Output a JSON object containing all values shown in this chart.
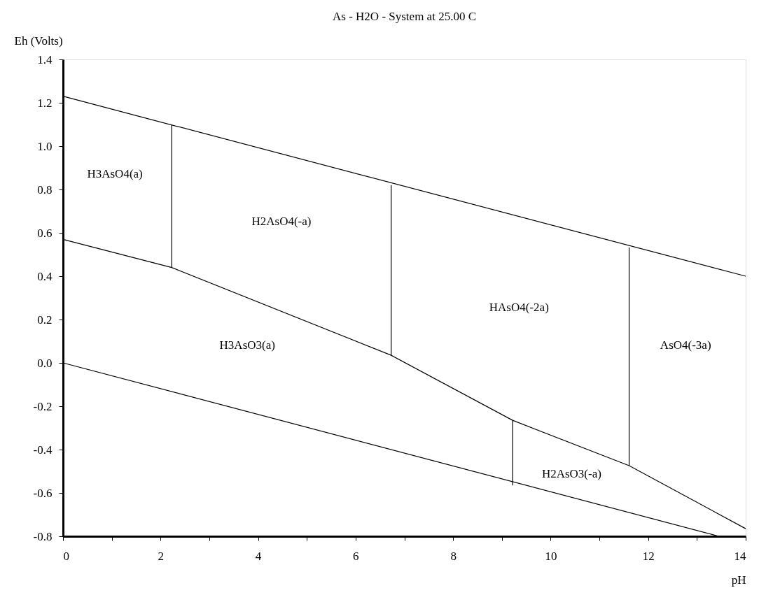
{
  "chart_data": {
    "type": "line",
    "title": "As - H2O - System at 25.00 C",
    "xlabel": "pH",
    "ylabel": "Eh (Volts)",
    "xlim": [
      0,
      14
    ],
    "ylim": [
      -0.8,
      1.4
    ],
    "xticks": [
      0,
      {
        "value": 1,
        "label": null
      },
      2,
      {
        "value": 3,
        "label": null
      },
      4,
      {
        "value": 5,
        "label": null
      },
      6,
      {
        "value": 7,
        "label": null
      },
      8,
      {
        "value": 9,
        "label": null
      },
      10,
      {
        "value": 11,
        "label": null
      },
      12,
      {
        "value": 13,
        "label": null
      },
      14
    ],
    "yticks": [
      -0.8,
      -0.6,
      -0.4,
      -0.2,
      {
        "value": 0,
        "label": "0.0"
      },
      0.2,
      0.4,
      0.6,
      0.8,
      {
        "value": 1,
        "label": "1.0"
      },
      1.2,
      1.4
    ],
    "grid": false,
    "legend": false,
    "marker": "none",
    "line_style": "solid",
    "series": [
      {
        "color": "#000000",
        "x": [
          0,
          14
        ],
        "values": [
          1.23,
          0.4
        ]
      },
      {
        "color": "#000000",
        "x": [
          0,
          13.45
        ],
        "values": [
          0.0,
          -0.8
        ]
      },
      {
        "color": "#000000",
        "x": [
          0,
          2.23,
          6.73,
          9.22,
          11.61,
          14
        ],
        "values": [
          0.57,
          0.44,
          0.035,
          -0.265,
          -0.474,
          -0.765
        ]
      },
      {
        "color": "#000000",
        "x": [
          2.23,
          2.23
        ],
        "values": [
          0.44,
          1.097
        ]
      },
      {
        "color": "#000000",
        "x": [
          6.73,
          6.73
        ],
        "values": [
          0.035,
          0.82
        ]
      },
      {
        "color": "#000000",
        "x": [
          9.22,
          9.22
        ],
        "values": [
          -0.565,
          -0.265
        ]
      },
      {
        "color": "#000000",
        "x": [
          11.61,
          11.61
        ],
        "values": [
          -0.474,
          0.532
        ]
      }
    ],
    "annotations": [
      "H3AsO4(a)",
      "H2AsO4(-a)",
      "HAsO4(-2a)",
      "H3AsO3(a)",
      "AsO4(-3a)",
      "H2AsO3(-a)"
    ]
  }
}
